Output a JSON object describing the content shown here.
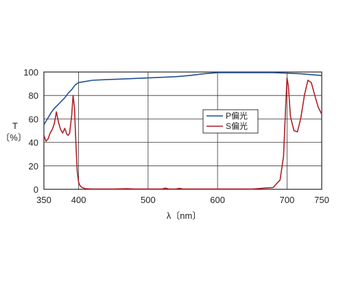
{
  "chart_data": {
    "type": "line",
    "title": "",
    "xlabel": "λ〔nm〕",
    "ylabel_line1": "T",
    "ylabel_line2": "〔%〕",
    "xlim": [
      350,
      750
    ],
    "ylim": [
      0,
      100
    ],
    "xticks": [
      350,
      400,
      500,
      600,
      700,
      750
    ],
    "yticks": [
      0,
      20,
      40,
      60,
      80,
      100
    ],
    "grid": true,
    "legend_position": "center-right",
    "series": [
      {
        "name": "P偏光",
        "color": "#1f4f8f",
        "x": [
          350,
          355,
          360,
          365,
          370,
          375,
          380,
          385,
          390,
          395,
          400,
          410,
          420,
          440,
          460,
          480,
          500,
          520,
          540,
          560,
          580,
          600,
          620,
          650,
          680,
          700,
          720,
          740,
          750
        ],
        "y": [
          55,
          60,
          65,
          69,
          72,
          75,
          78,
          82,
          85,
          89,
          91,
          92,
          93,
          93.5,
          94,
          94.5,
          95,
          95.5,
          96,
          97,
          98.5,
          99.5,
          99.5,
          99.5,
          99.5,
          99,
          98.5,
          97.5,
          97
        ]
      },
      {
        "name": "S偏光",
        "color": "#b01e23",
        "x": [
          350,
          353,
          356,
          359,
          362,
          365,
          368,
          371,
          374,
          377,
          380,
          383,
          385,
          387,
          390,
          392,
          394,
          396,
          398,
          400,
          402,
          405,
          410,
          420,
          450,
          470,
          480,
          500,
          520,
          525,
          530,
          540,
          545,
          550,
          555,
          600,
          650,
          680,
          690,
          695,
          698,
          700,
          702,
          705,
          710,
          715,
          720,
          725,
          730,
          735,
          740,
          745,
          750
        ],
        "y": [
          46,
          41,
          43,
          48,
          51,
          56,
          66,
          57,
          51,
          48,
          52,
          47,
          46,
          48,
          63,
          80,
          70,
          40,
          15,
          6,
          3,
          1.5,
          0.5,
          0.3,
          0.3,
          0.5,
          0.3,
          0.3,
          0.3,
          1,
          0.3,
          0.3,
          0.8,
          0.3,
          0.3,
          0.3,
          0.3,
          1.5,
          8,
          28,
          70,
          95,
          88,
          62,
          50,
          49,
          61,
          80,
          93,
          91,
          80,
          70,
          64
        ]
      }
    ]
  }
}
